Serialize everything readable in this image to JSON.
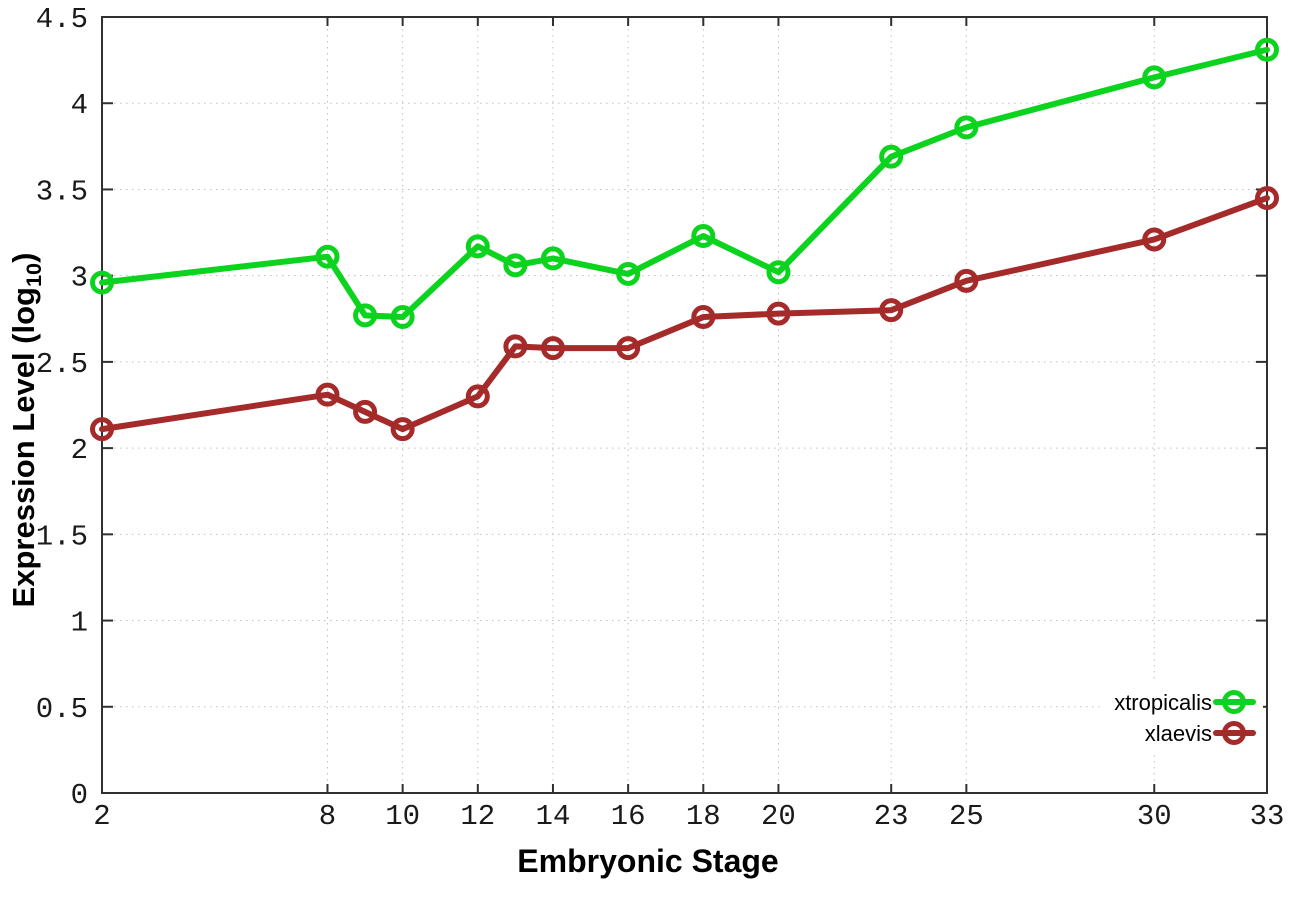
{
  "figure": {
    "xlabel": "Embryonic Stage",
    "ylabel_prefix": "Expression Level (log",
    "ylabel_sub": "10",
    "ylabel_suffix": ")"
  },
  "palette": {
    "xtropicalis_green": "#0cd41e",
    "xlaevis_red": "#a52a2a",
    "axis_color": "#303030",
    "grid_color": "#bfbfbf"
  },
  "chart_data": {
    "type": "line",
    "title": "",
    "xlabel": "Embryonic Stage",
    "ylabel": "Expression Level (log10)",
    "x": [
      2,
      8,
      9,
      10,
      12,
      13,
      14,
      16,
      18,
      20,
      23,
      25,
      30,
      33
    ],
    "series": [
      {
        "name": "xtropicalis",
        "color": "#0cd41e",
        "values": [
          2.96,
          3.11,
          2.77,
          2.76,
          3.17,
          3.06,
          3.1,
          3.01,
          3.23,
          3.02,
          3.69,
          3.86,
          4.15,
          4.31
        ]
      },
      {
        "name": "xlaevis",
        "color": "#a52a2a",
        "values": [
          2.11,
          2.31,
          2.21,
          2.11,
          2.3,
          2.59,
          2.58,
          2.58,
          2.76,
          2.78,
          2.8,
          2.97,
          3.21,
          3.45
        ]
      }
    ],
    "xlim": [
      2,
      33
    ],
    "ylim": [
      0,
      4.5
    ],
    "x_tick_labels": [
      2,
      8,
      10,
      12,
      14,
      16,
      18,
      20,
      23,
      25,
      30,
      33
    ],
    "y_ticks": [
      0,
      0.5,
      1,
      1.5,
      2,
      2.5,
      3,
      3.5,
      4,
      4.5
    ],
    "grid": true,
    "legend_position": "bottom-right",
    "marker": "open-circle"
  }
}
